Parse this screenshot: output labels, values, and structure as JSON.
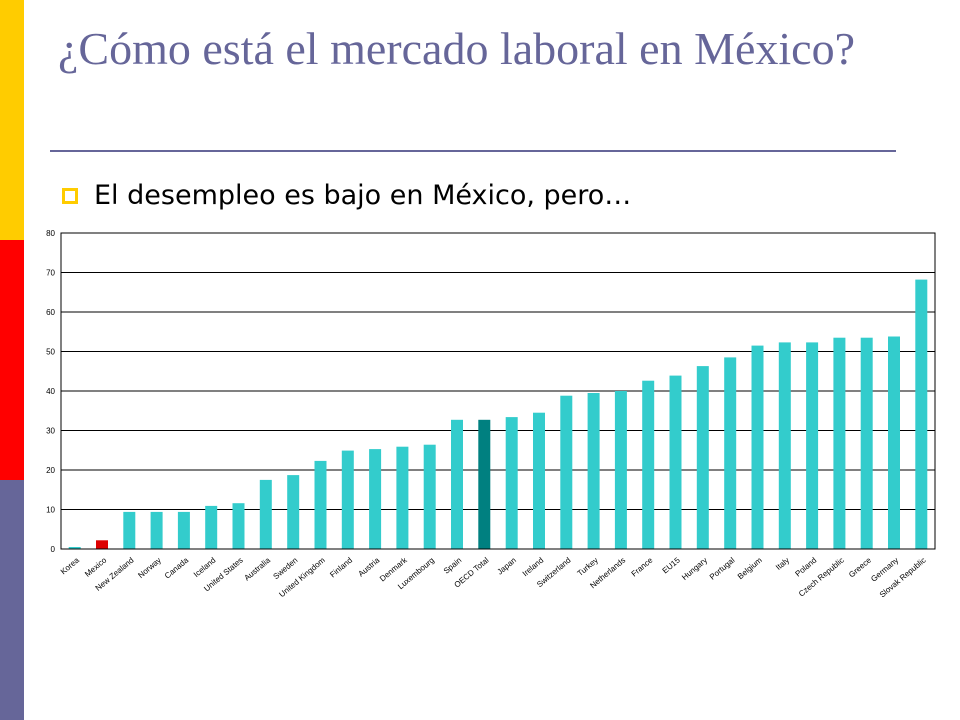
{
  "slide": {
    "title": "¿Cómo está el mercado laboral en México?",
    "bullet": "El desempleo es bajo en México, pero…"
  },
  "colors": {
    "accent": "#666699",
    "stripe_top": "#ffcc00",
    "stripe_mid": "#ff0000",
    "stripe_bottom": "#666699",
    "bar": "#33cccc",
    "bar_mexico": "#dd0000",
    "bar_oecd": "#008080"
  },
  "chart_data": {
    "type": "bar",
    "categories": [
      "Korea",
      "Mexico",
      "New Zealand",
      "Norway",
      "Canada",
      "Iceland",
      "United States",
      "Australia",
      "Sweden",
      "United Kingdom",
      "Finland",
      "Austria",
      "Denmark",
      "Luxembourg",
      "Spain",
      "OECD Total",
      "Japan",
      "Ireland",
      "Switzerland",
      "Turkey",
      "Netherlands",
      "France",
      "EU15",
      "Hungary",
      "Portugal",
      "Belgium",
      "Italy",
      "Poland",
      "Czech Republic",
      "Greece",
      "Germany",
      "Slovak Republic"
    ],
    "values": [
      0.5,
      2.2,
      9.4,
      9.4,
      9.4,
      10.9,
      11.6,
      17.5,
      18.7,
      22.3,
      24.9,
      25.3,
      25.9,
      26.4,
      32.7,
      32.7,
      33.4,
      34.5,
      38.8,
      39.5,
      40.0,
      42.6,
      43.9,
      46.3,
      48.5,
      51.5,
      52.3,
      52.3,
      53.5,
      53.5,
      53.8,
      68.2
    ],
    "highlight": {
      "Mexico": "#dd0000",
      "OECD Total": "#008080"
    },
    "ylim": [
      0,
      80
    ],
    "yticks": [
      0,
      10,
      20,
      30,
      40,
      50,
      60,
      70,
      80
    ],
    "grid": true,
    "legend": "none"
  }
}
